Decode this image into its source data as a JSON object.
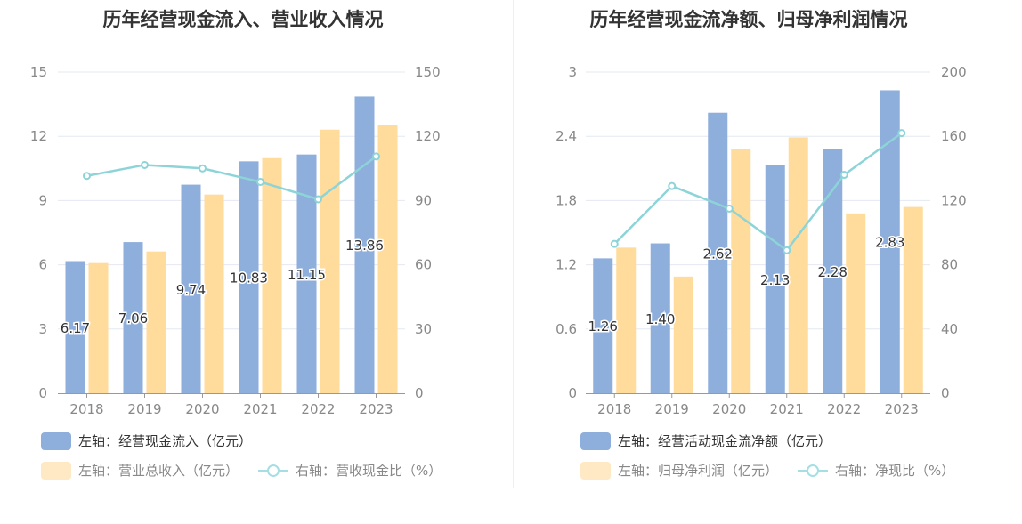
{
  "chart_data": [
    {
      "type": "bar",
      "title": "历年经营现金流入、营业收入情况",
      "categories": [
        "2018",
        "2019",
        "2020",
        "2021",
        "2022",
        "2023"
      ],
      "ylim_left": [
        0,
        15
      ],
      "yticks_left": [
        0,
        3,
        6,
        9,
        12,
        15
      ],
      "ylim_right": [
        0,
        150
      ],
      "yticks_right": [
        0,
        30,
        60,
        90,
        120,
        150
      ],
      "grid": true,
      "legend_position": "bottom-left",
      "series": [
        {
          "name": "左轴：经营现金流入（亿元）",
          "type": "bar",
          "axis": "left",
          "color": "#8eaedc",
          "values": [
            6.17,
            7.06,
            9.74,
            10.83,
            11.15,
            13.86
          ],
          "labels": [
            "6.17",
            "7.06",
            "9.74",
            "10.83",
            "11.15",
            "13.86"
          ]
        },
        {
          "name": "左轴：营业总收入（亿元）",
          "type": "bar",
          "axis": "left",
          "color": "#ffdb9c",
          "values": [
            6.08,
            6.62,
            9.28,
            10.98,
            12.31,
            12.53
          ]
        },
        {
          "name": "右轴：营收现金比（%）",
          "type": "line",
          "axis": "right",
          "color": "#8dd4d8",
          "values": [
            101.5,
            106.6,
            105.0,
            98.7,
            90.6,
            110.6
          ]
        }
      ]
    },
    {
      "type": "bar",
      "title": "历年经营现金流净额、归母净利润情况",
      "categories": [
        "2018",
        "2019",
        "2020",
        "2021",
        "2022",
        "2023"
      ],
      "ylim_left": [
        0,
        3
      ],
      "yticks_left": [
        "0",
        "0.6",
        "1.2",
        "1.8",
        "2.4",
        "3"
      ],
      "ylim_right": [
        0,
        200
      ],
      "yticks_right": [
        0,
        40,
        80,
        120,
        160,
        200
      ],
      "grid": true,
      "legend_position": "bottom-left",
      "series": [
        {
          "name": "左轴：经营活动现金流净额（亿元）",
          "type": "bar",
          "axis": "left",
          "color": "#8eaedc",
          "values": [
            1.26,
            1.4,
            2.62,
            2.13,
            2.28,
            2.83
          ],
          "labels": [
            "1.26",
            "1.40",
            "2.62",
            "2.13",
            "2.28",
            "2.83"
          ]
        },
        {
          "name": "左轴：归母净利润（亿元）",
          "type": "bar",
          "axis": "left",
          "color": "#ffdb9c",
          "values": [
            1.36,
            1.09,
            2.28,
            2.39,
            1.68,
            1.74
          ]
        },
        {
          "name": "右轴：净现比（%）",
          "type": "line",
          "axis": "right",
          "color": "#8dd4d8",
          "values": [
            93,
            129,
            115,
            89,
            136,
            162
          ]
        }
      ]
    }
  ]
}
